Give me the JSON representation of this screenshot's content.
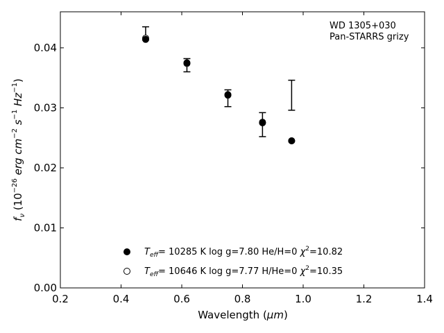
{
  "chart_data": {
    "type": "scatter",
    "title": "",
    "annotation_lines": [
      "WD 1305+030",
      "Pan-STARRS grizy"
    ],
    "annotation_position": "top-right",
    "xlabel": {
      "main": "Wavelength (",
      "unit": "μm",
      "close": ")"
    },
    "ylabel": {
      "f": "f",
      "nu": "ν",
      "open": " (10",
      "exp": "−26",
      "unit": " erg cm",
      "cm_exp": "−2",
      "s": " s",
      "s_exp": "−1",
      "hz": " Hz",
      "hz_exp": "−1",
      "close": ")"
    },
    "xlim": [
      0.2,
      1.4
    ],
    "ylim": [
      0.0,
      0.046
    ],
    "xticks": [
      0.2,
      0.4,
      0.6,
      0.8,
      1.0,
      1.2,
      1.4
    ],
    "xtick_labels": [
      "0.2",
      "0.4",
      "0.6",
      "0.8",
      "1.0",
      "1.2",
      "1.4"
    ],
    "yticks": [
      0.0,
      0.01,
      0.02,
      0.03,
      0.04
    ],
    "ytick_labels": [
      "0.00",
      "0.01",
      "0.02",
      "0.03",
      "0.04"
    ],
    "grid": false,
    "legend_position": "bottom-center",
    "observed": {
      "x": [
        0.481,
        0.617,
        0.752,
        0.866,
        0.962
      ],
      "y": [
        0.0424,
        0.0371,
        0.0316,
        0.0272,
        0.0321
      ],
      "yerr": [
        0.0011,
        0.0011,
        0.0014,
        0.002,
        0.0025
      ]
    },
    "series": [
      {
        "legend_label": {
          "prefix": "T",
          "sub": "eff",
          "middle": "= 10285 K  log g=7.80  He/H=0  ",
          "chi": "χ",
          "chi_exp": "2",
          "suffix": "=10.82"
        },
        "marker": "filled-circle",
        "x": [
          0.481,
          0.617,
          0.752,
          0.866,
          0.962
        ],
        "y": [
          0.0414,
          0.0375,
          0.0322,
          0.0276,
          0.0245
        ]
      },
      {
        "legend_label": {
          "prefix": "T",
          "sub": "eff",
          "middle": "= 10646 K  log g=7.77  H/He=0  ",
          "chi": "χ",
          "chi_exp": "2",
          "suffix": "=10.35"
        },
        "marker": "open-circle",
        "x": [
          0.481,
          0.617,
          0.752,
          0.866,
          0.962
        ],
        "y": [
          0.0416,
          0.0374,
          0.0321,
          0.0275,
          0.0245
        ]
      }
    ]
  }
}
